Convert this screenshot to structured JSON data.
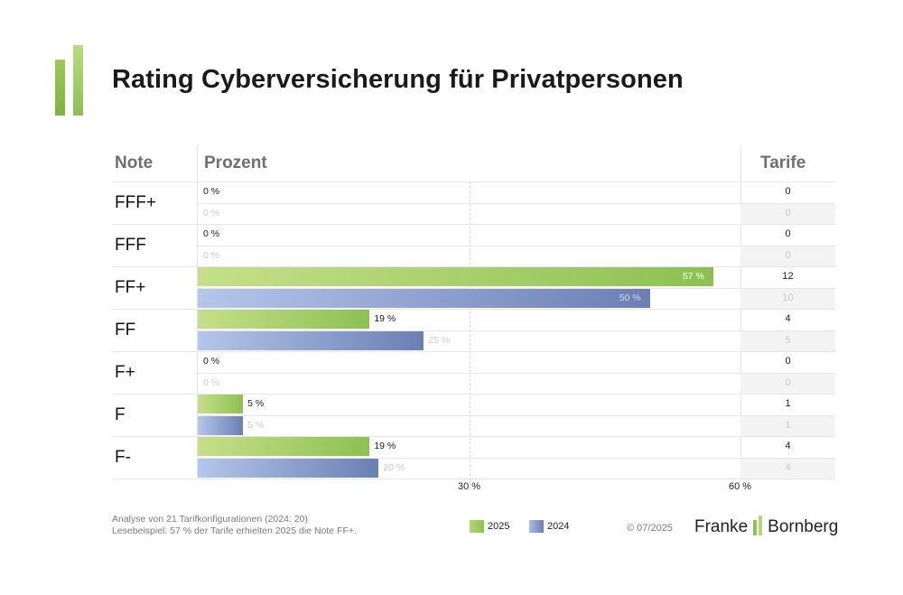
{
  "title": "Rating Cyberversicherung für Privatpersonen",
  "headers": {
    "note": "Note",
    "prozent": "Prozent",
    "tarife": "Tarife"
  },
  "axis": {
    "ticks": [
      "30 %",
      "60 %"
    ]
  },
  "legend": {
    "current": "2025",
    "previous": "2024"
  },
  "footnote": {
    "line1": "Analyse von 21 Tarifkonfigurationen (2024: 20)",
    "line2": "Lesebeispiel: 57 % der Tarife erhielten 2025 die Note FF+."
  },
  "copyright": "© 07/2025",
  "brand": {
    "left": "Franke",
    "right": "Bornberg"
  },
  "colors": {
    "current": "#8cc152",
    "previous": "#6b7fb4"
  },
  "chart_data": {
    "type": "bar",
    "orientation": "horizontal",
    "title": "Rating Cyberversicherung für Privatpersonen",
    "categories": [
      "FFF+",
      "FFF",
      "FF+",
      "FF",
      "F+",
      "F",
      "F-"
    ],
    "xlim": [
      0,
      60
    ],
    "xticks": [
      30,
      60
    ],
    "series": [
      {
        "name": "2025",
        "values": [
          0,
          0,
          57,
          19,
          0,
          5,
          19
        ],
        "labels": [
          "0 %",
          "0 %",
          "57 %",
          "19 %",
          "0 %",
          "5 %",
          "19 %"
        ],
        "tarife": [
          "0",
          "0",
          "12",
          "4",
          "0",
          "1",
          "4"
        ]
      },
      {
        "name": "2024",
        "values": [
          0,
          0,
          50,
          25,
          0,
          5,
          20
        ],
        "labels": [
          "0 %",
          "0 %",
          "50 %",
          "25 %",
          "0 %",
          "5 %",
          "20 %"
        ],
        "tarife": [
          "0",
          "0",
          "10",
          "5",
          "0",
          "1",
          "4"
        ]
      }
    ]
  }
}
